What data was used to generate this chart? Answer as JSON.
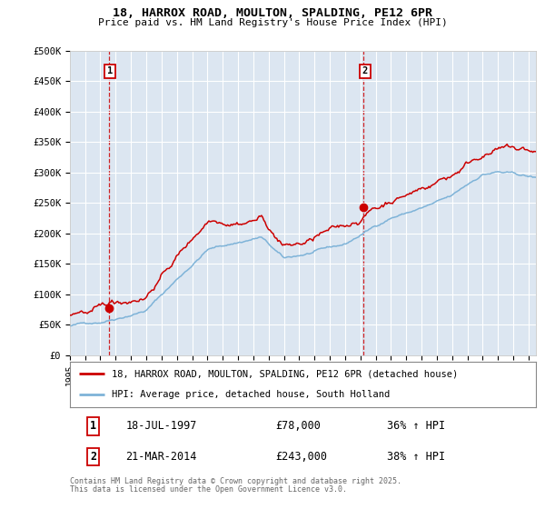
{
  "title1": "18, HARROX ROAD, MOULTON, SPALDING, PE12 6PR",
  "title2": "Price paid vs. HM Land Registry's House Price Index (HPI)",
  "bg_color": "#dce6f1",
  "red_color": "#cc0000",
  "blue_color": "#7eb3d8",
  "vline_color": "#cc0000",
  "grid_color": "#ffffff",
  "ylim": [
    0,
    500000
  ],
  "ytick_labels": [
    "£0",
    "£50K",
    "£100K",
    "£150K",
    "£200K",
    "£250K",
    "£300K",
    "£350K",
    "£400K",
    "£450K",
    "£500K"
  ],
  "ytick_values": [
    0,
    50000,
    100000,
    150000,
    200000,
    250000,
    300000,
    350000,
    400000,
    450000,
    500000
  ],
  "sale1_year": 1997.54,
  "sale1_price": 78000,
  "sale1_label": "1",
  "sale2_year": 2014.22,
  "sale2_price": 243000,
  "sale2_label": "2",
  "legend1": "18, HARROX ROAD, MOULTON, SPALDING, PE12 6PR (detached house)",
  "legend2": "HPI: Average price, detached house, South Holland",
  "table_row1": [
    "1",
    "18-JUL-1997",
    "£78,000",
    "36% ↑ HPI"
  ],
  "table_row2": [
    "2",
    "21-MAR-2014",
    "£243,000",
    "38% ↑ HPI"
  ],
  "footnote1": "Contains HM Land Registry data © Crown copyright and database right 2025.",
  "footnote2": "This data is licensed under the Open Government Licence v3.0.",
  "xstart": 1995,
  "xend": 2025.5
}
